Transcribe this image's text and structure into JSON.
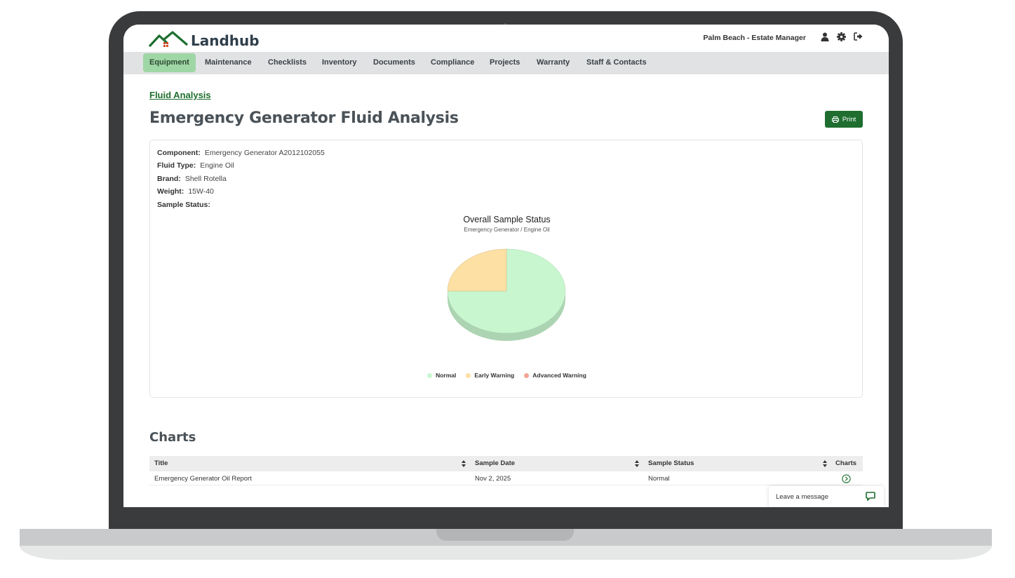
{
  "app": {
    "logo_text": "Landhub",
    "user_label": "Palm Beach - Estate Manager"
  },
  "nav": {
    "items": [
      "Equipment",
      "Maintenance",
      "Checklists",
      "Inventory",
      "Documents",
      "Compliance",
      "Projects",
      "Warranty",
      "Staff & Contacts"
    ],
    "active": "Equipment"
  },
  "page": {
    "breadcrumb": "Fluid Analysis",
    "title": "Emergency Generator Fluid Analysis",
    "print_label": "Print"
  },
  "details": {
    "component_label": "Component:",
    "component_value": "Emergency Generator A2012102055",
    "fluid_type_label": "Fluid Type:",
    "fluid_type_value": "Engine Oil",
    "brand_label": "Brand:",
    "brand_value": "Shell Rotella",
    "weight_label": "Weight:",
    "weight_value": "15W-40",
    "sample_status_label": "Sample Status:"
  },
  "chart_data": {
    "type": "pie",
    "title": "Overall Sample Status",
    "subtitle": "Emergency Generator / Engine Oil",
    "categories": [
      "Normal",
      "Early Warning",
      "Advanced Warning"
    ],
    "values": [
      75,
      25,
      0
    ],
    "colors": [
      "#c8f7cf",
      "#fde0a3",
      "#f3a394"
    ],
    "three_d": true,
    "legend_position": "bottom"
  },
  "charts_section": {
    "heading": "Charts",
    "columns": [
      "Title",
      "Sample Date",
      "Sample Status",
      "Charts"
    ],
    "rows": [
      {
        "title": "Emergency Generator Oil Report",
        "date": "Nov 2, 2025",
        "status": "Normal"
      }
    ]
  },
  "chat": {
    "label": "Leave a message"
  },
  "colors": {
    "brand_green": "#1f6e30",
    "nav_active": "#9fd6a5",
    "nav_bg": "#e1e2e4"
  }
}
